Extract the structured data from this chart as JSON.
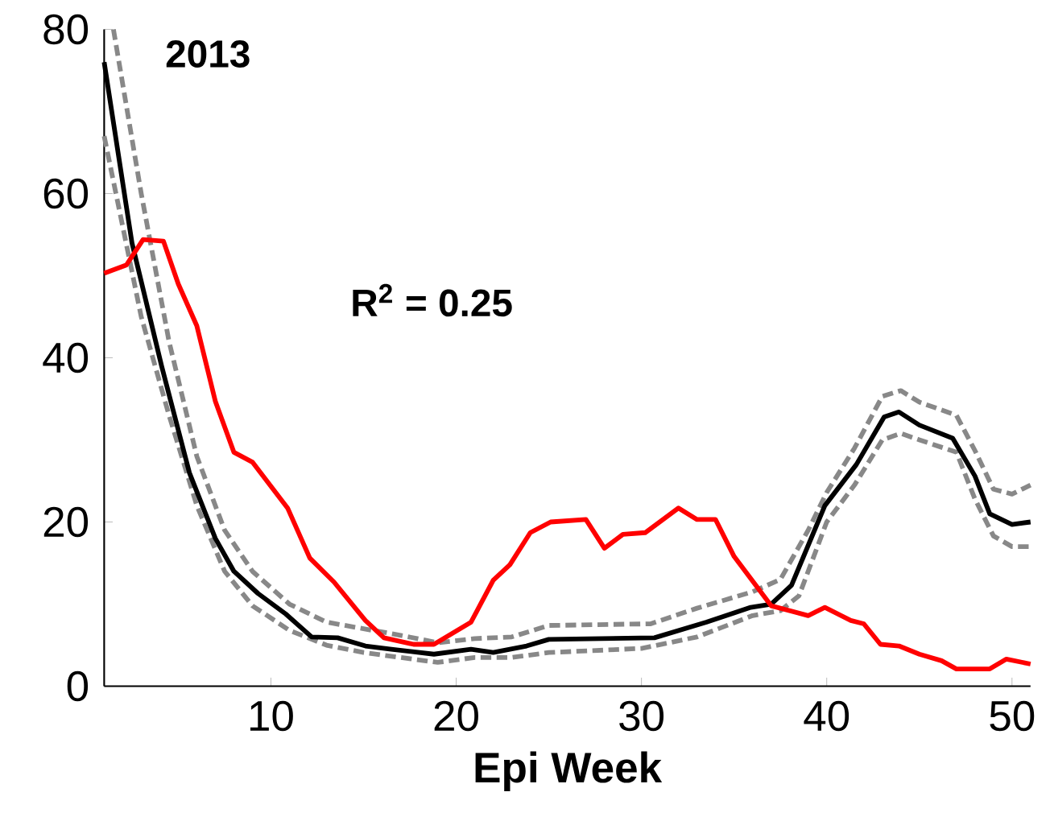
{
  "chart_data": {
    "type": "line",
    "xlabel": "Epi Week",
    "annotations": [
      "2013",
      "R$^{2}$ = 0.25"
    ],
    "xlim": [
      1,
      51
    ],
    "xticks": [
      10,
      20,
      30,
      40,
      50
    ],
    "ylim": [
      0,
      80
    ],
    "yticks": [
      0,
      20,
      40,
      60,
      80
    ],
    "grid": false,
    "marker": "none",
    "series": [
      {
        "color": "#888888",
        "line_style": "dashed",
        "x": [
          1.5,
          3,
          4.5,
          6,
          7.5,
          9,
          11,
          13,
          15,
          17,
          19,
          21,
          23,
          25,
          30.5,
          33,
          36,
          37.5,
          39,
          40,
          41.5,
          43,
          44,
          45,
          47,
          48,
          49,
          50,
          51
        ],
        "values": [
          80,
          60,
          42,
          28,
          19,
          14,
          10,
          7.8,
          7,
          6.2,
          5.3,
          5.8,
          6,
          7.4,
          7.6,
          9.5,
          11.5,
          13,
          19,
          23.6,
          29,
          35.3,
          36,
          34.6,
          33,
          28.7,
          24,
          23.4,
          24.5
        ]
      },
      {
        "color": "#888888",
        "line_style": "dashed",
        "x": [
          1,
          2,
          3,
          4.5,
          6,
          7.5,
          9,
          11,
          13,
          15,
          17,
          19,
          21,
          23,
          25,
          30,
          33,
          36,
          37.5,
          38.5,
          40,
          41.5,
          43,
          44,
          45,
          47,
          48,
          49,
          50,
          51
        ],
        "values": [
          67,
          56,
          45,
          33,
          22,
          14,
          9.8,
          6.8,
          5,
          4.1,
          3.5,
          2.9,
          3.5,
          3.5,
          4.1,
          4.6,
          6,
          8.6,
          9.2,
          11,
          20,
          24.5,
          30,
          30.8,
          30,
          28.5,
          22.8,
          18.3,
          17,
          17
        ]
      },
      {
        "color": "#000000",
        "line_style": "solid",
        "x": [
          1,
          2.5,
          4.1,
          5.6,
          7,
          8,
          9.3,
          10.8,
          12.2,
          13.6,
          15.1,
          16.5,
          18.8,
          20.8,
          22,
          23.8,
          25,
          30.7,
          33.5,
          35.9,
          37,
          38.1,
          39.9,
          41.6,
          43.1,
          43.9,
          45,
          46.8,
          48,
          48.8,
          50,
          51
        ],
        "values": [
          76,
          54,
          39,
          26,
          18,
          14,
          11.3,
          8.8,
          6,
          5.9,
          4.9,
          4.5,
          3.9,
          4.5,
          4.1,
          4.9,
          5.7,
          5.9,
          7.8,
          9.6,
          10,
          12.3,
          22,
          27,
          32.8,
          33.4,
          31.8,
          30.2,
          25.6,
          21,
          19.7,
          20
        ]
      },
      {
        "color": "#ff0000",
        "line_style": "solid",
        "x": [
          1,
          2.2,
          3.1,
          4.2,
          5,
          6,
          7,
          8,
          9,
          10.9,
          12.1,
          13.4,
          15.1,
          16.1,
          17.7,
          18.8,
          20.8,
          22,
          22.9,
          24,
          25.1,
          27,
          28,
          29,
          30.2,
          32,
          33,
          34,
          35,
          37,
          39,
          39.9,
          41.3,
          42,
          42.9,
          43.9,
          45,
          46.2,
          47,
          48.8,
          49.7,
          51
        ],
        "values": [
          50.3,
          51.3,
          54.4,
          54.2,
          49,
          43.9,
          34.7,
          28.5,
          27.3,
          21.7,
          15.6,
          12.7,
          8,
          5.9,
          5.1,
          5.1,
          7.8,
          12.9,
          14.8,
          18.7,
          20,
          20.3,
          16.8,
          18.5,
          18.7,
          21.7,
          20.3,
          20.3,
          15.8,
          9.8,
          8.6,
          9.6,
          8,
          7.6,
          5.1,
          4.9,
          3.9,
          3.1,
          2.1,
          2.1,
          3.3,
          2.7
        ]
      }
    ]
  }
}
